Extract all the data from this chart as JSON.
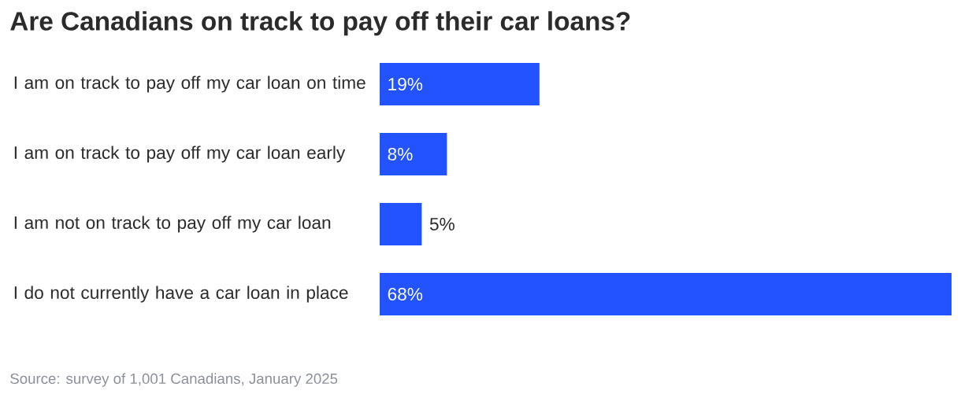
{
  "chart_data": {
    "type": "bar",
    "orientation": "horizontal",
    "title": "Are Canadians on track to pay off their car loans?",
    "categories": [
      "I am on track to pay off my car loan on time",
      "I am on track to pay off my car loan early",
      "I am not on track to pay off my car loan",
      "I do not currently have a car loan in place"
    ],
    "values": [
      19,
      8,
      5,
      68
    ],
    "color": "#2353fe",
    "xlim": [
      0,
      68
    ],
    "tick_labels": "y",
    "value_labels": [
      "19%",
      "8%",
      "5%",
      "68%"
    ],
    "annotations": [
      "Source: survey of 1,001 Canadians, January 2025"
    ]
  }
}
